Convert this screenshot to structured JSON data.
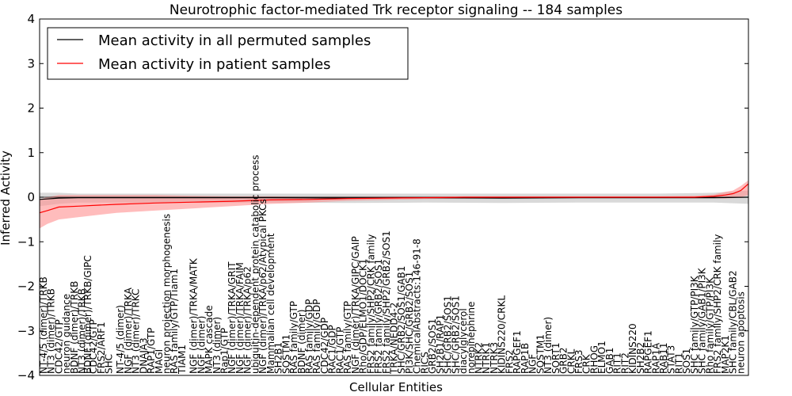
{
  "chart_data": {
    "type": "line",
    "title": "Neurotrophic factor-mediated Trk receptor signaling -- 184 samples",
    "xlabel": "Cellular Entities",
    "ylabel": "Inferred Activity",
    "ylim": [
      -4,
      4
    ],
    "yticks": [
      -4,
      -3,
      -2,
      -1,
      0,
      1,
      2,
      3,
      4
    ],
    "xlim": [
      0,
      184
    ],
    "grid": false,
    "legend_position": "top-left",
    "legend": [
      {
        "label": "Mean activity in all permuted samples",
        "color": "#000000"
      },
      {
        "label": "Mean activity in patient samples",
        "color": "#ff0000"
      }
    ],
    "series": [
      {
        "name": "Mean activity in all permuted samples",
        "color": "#000000",
        "x": [
          0,
          5,
          10,
          20,
          40,
          60,
          80,
          100,
          120,
          140,
          160,
          175,
          184
        ],
        "values": [
          -0.05,
          -0.02,
          -0.01,
          -0.01,
          -0.01,
          -0.01,
          -0.02,
          -0.01,
          -0.02,
          -0.01,
          -0.01,
          -0.01,
          0.0
        ],
        "band_low": [
          -0.2,
          -0.15,
          -0.12,
          -0.12,
          -0.12,
          -0.12,
          -0.13,
          -0.12,
          -0.13,
          -0.12,
          -0.12,
          -0.12,
          -0.15
        ],
        "band_high": [
          0.1,
          0.1,
          0.08,
          0.08,
          0.08,
          0.08,
          0.08,
          0.08,
          0.08,
          0.08,
          0.08,
          0.1,
          0.15
        ],
        "band_color": "#cccccc"
      },
      {
        "name": "Mean activity in patient samples",
        "color": "#ff0000",
        "x": [
          0,
          2,
          5,
          10,
          20,
          30,
          40,
          50,
          60,
          70,
          80,
          90,
          100,
          110,
          120,
          130,
          140,
          150,
          160,
          170,
          175,
          178,
          180,
          182,
          184
        ],
        "values": [
          -0.35,
          -0.3,
          -0.22,
          -0.2,
          -0.16,
          -0.13,
          -0.11,
          -0.09,
          -0.06,
          -0.05,
          -0.03,
          -0.02,
          -0.01,
          0.0,
          0.0,
          0.0,
          0.0,
          0.0,
          0.0,
          0.0,
          0.02,
          0.05,
          0.08,
          0.15,
          0.3
        ],
        "band_low": [
          -0.7,
          -0.6,
          -0.5,
          -0.45,
          -0.35,
          -0.3,
          -0.25,
          -0.2,
          -0.15,
          -0.12,
          -0.08,
          -0.06,
          -0.04,
          -0.03,
          -0.02,
          -0.02,
          -0.02,
          -0.02,
          -0.02,
          -0.02,
          -0.02,
          -0.03,
          -0.02,
          0.0,
          0.05
        ],
        "band_high": [
          -0.05,
          0.0,
          0.05,
          0.05,
          0.05,
          0.05,
          0.03,
          0.02,
          0.02,
          0.01,
          0.01,
          0.01,
          0.01,
          0.02,
          0.02,
          0.02,
          0.02,
          0.02,
          0.02,
          0.03,
          0.06,
          0.12,
          0.15,
          0.25,
          0.38
        ],
        "band_color": "#ff9090"
      }
    ],
    "entity_labels": [
      {
        "x": 1,
        "label": "NT-4/5 (dimer)/TRKB"
      },
      {
        "x": 3,
        "label": "NT3 (dimer)/TRKB"
      },
      {
        "x": 5,
        "label": "CDC42/GTP"
      },
      {
        "x": 7,
        "label": "neuron guidance"
      },
      {
        "x": 9,
        "label": "BDNF (dimer)/TRKB"
      },
      {
        "x": 11,
        "label": "NT3 (dimer)/TRKB"
      },
      {
        "x": 12.5,
        "label": "BDNF (dimer)/TRKB/GIPC"
      },
      {
        "x": 14,
        "label": "CDC42/GTP"
      },
      {
        "x": 16,
        "label": "FRS2/ARF1"
      },
      {
        "x": 18,
        "label": "SHC"
      },
      {
        "x": 21,
        "label": "NT-4/5 (dimer)"
      },
      {
        "x": 23,
        "label": "NGF (dimer)/TRKA"
      },
      {
        "x": 25,
        "label": "NT3 (dimer)/TRKC"
      },
      {
        "x": 27,
        "label": "DNAJA3"
      },
      {
        "x": 29,
        "label": "RAP1/GTP"
      },
      {
        "x": 31,
        "label": "MAGI"
      },
      {
        "x": 33,
        "label": "neuron projection morphogenesis"
      },
      {
        "x": 35,
        "label": "RAS family/GTP/Tiam1"
      },
      {
        "x": 37,
        "label": "TIAM1"
      },
      {
        "x": 40,
        "label": "NGF (dimer)/TRKA/MATK"
      },
      {
        "x": 42,
        "label": "NGF (dimer)"
      },
      {
        "x": 44,
        "label": "MAPK cascade"
      },
      {
        "x": 46,
        "label": "NT3 (dimer)"
      },
      {
        "x": 48,
        "label": "Rap1/GTP"
      },
      {
        "x": 50,
        "label": "NGF (dimer)/TRKA/GRIT"
      },
      {
        "x": 52,
        "label": "NGF (dimer)/TRKA/FAIM"
      },
      {
        "x": 54,
        "label": "NGF (dimer)/TRKA/p62"
      },
      {
        "x": 56,
        "label": "ubiquitin-dependent protein catabolic process"
      },
      {
        "x": 58,
        "label": "NGF (dimer)/TRKA/p62/Atypical PKCs"
      },
      {
        "x": 60,
        "label": "Mammalian cell development"
      },
      {
        "x": 62,
        "label": "SH2B1"
      },
      {
        "x": 64,
        "label": "SQSTM1"
      },
      {
        "x": 66,
        "label": "RAS family/GTP"
      },
      {
        "x": 68,
        "label": "BDNF (dimer)"
      },
      {
        "x": 70,
        "label": "RAS family/GDP"
      },
      {
        "x": 72,
        "label": "RAS family/GDP"
      },
      {
        "x": 74,
        "label": "CDC42/GDP"
      },
      {
        "x": 76,
        "label": "RAC1/GDP"
      },
      {
        "x": 78,
        "label": "RAC1/GTP"
      },
      {
        "x": 80,
        "label": "RAS family/GTP"
      },
      {
        "x": 82,
        "label": "NGF (dimer)/TRKA/GIPC/GAIP"
      },
      {
        "x": 84,
        "label": "Rho/GDP/ELMO1/DOCK1"
      },
      {
        "x": 86,
        "label": "FRS2 family/SHP2/CRK family"
      },
      {
        "x": 88,
        "label": "FRS2 family/GRB2/SOS1"
      },
      {
        "x": 90,
        "label": "FRS2 family/SHP2/GRB2/SOS1"
      },
      {
        "x": 92,
        "label": "TRKA/NEDD4-2"
      },
      {
        "x": 94,
        "label": "SHC/GRB2/SOS1/GAB1"
      },
      {
        "x": 96,
        "label": "PI3K/SHC/GRB2/SOS1"
      },
      {
        "x": 98,
        "label": "ChemicalAbstracts:146-91-8"
      },
      {
        "x": 100,
        "label": "RICS"
      },
      {
        "x": 102,
        "label": "GRB2/SOS1"
      },
      {
        "x": 104,
        "label": "SH2B1/RAP1"
      },
      {
        "x": 106,
        "label": "SHC/GRB2/SOS1"
      },
      {
        "x": 108,
        "label": "SHC/GRB2/SOS1"
      },
      {
        "x": 110,
        "label": "diacylglycerol"
      },
      {
        "x": 112,
        "label": "norepinephrine"
      },
      {
        "x": 114,
        "label": "NTRK2"
      },
      {
        "x": 116,
        "label": "NTRK1"
      },
      {
        "x": 118,
        "label": "NTRK3"
      },
      {
        "x": 120,
        "label": "KIDINS220/CRKL"
      },
      {
        "x": 122,
        "label": "FRS2"
      },
      {
        "x": 124,
        "label": "RAPGEF1"
      },
      {
        "x": 126,
        "label": "RAP1B"
      },
      {
        "x": 128,
        "label": "NGF"
      },
      {
        "x": 130,
        "label": "SQSTM1"
      },
      {
        "x": 132,
        "label": "NT3 (dimer)"
      },
      {
        "x": 134,
        "label": "SORT1"
      },
      {
        "x": 136,
        "label": "GRB2"
      },
      {
        "x": 138,
        "label": "CRKL"
      },
      {
        "x": 140,
        "label": "FRS3"
      },
      {
        "x": 142,
        "label": "CRK"
      },
      {
        "x": 144,
        "label": "RHOG"
      },
      {
        "x": 146,
        "label": "ELMO1"
      },
      {
        "x": 148,
        "label": "GAB1"
      },
      {
        "x": 150,
        "label": "RIT1"
      },
      {
        "x": 152,
        "label": "RIT2"
      },
      {
        "x": 154,
        "label": "KIDINS220"
      },
      {
        "x": 156,
        "label": "SH2B2"
      },
      {
        "x": 158,
        "label": "RAPGEF1"
      },
      {
        "x": 160,
        "label": "RAP1A"
      },
      {
        "x": 162,
        "label": "RAB11"
      },
      {
        "x": 164,
        "label": "STAT3"
      },
      {
        "x": 166,
        "label": "RIT1"
      },
      {
        "x": 168,
        "label": "SOS1"
      },
      {
        "x": 170,
        "label": "SHC family/GTP/PI3K"
      },
      {
        "x": 172,
        "label": "SHC family/GAB1/PI3K"
      },
      {
        "x": 174,
        "label": "Rho family/GTP/PI3K"
      },
      {
        "x": 176,
        "label": "FRS2 family/SHP2/CRK family"
      },
      {
        "x": 178,
        "label": "MAP2K1"
      },
      {
        "x": 180,
        "label": "SHC family/CBL/GAB2"
      },
      {
        "x": 182,
        "label": "neuron apoptosis"
      }
    ]
  }
}
